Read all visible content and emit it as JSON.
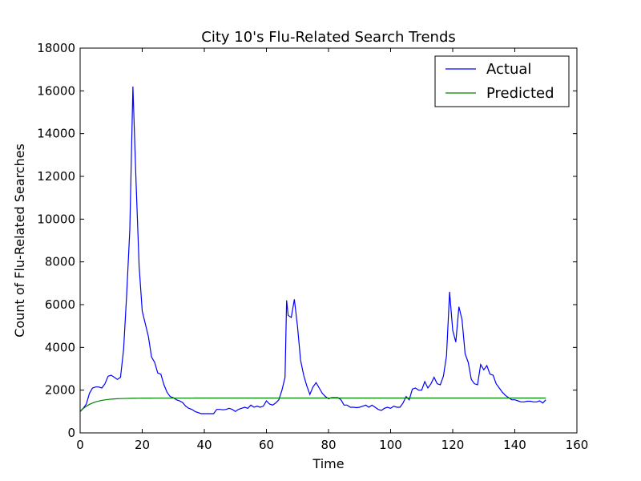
{
  "chart_data": {
    "type": "line",
    "title": "City 10's Flu-Related Search Trends",
    "xlabel": "Time",
    "ylabel": "Count of Flu-Related Searches",
    "xlim": [
      0,
      160
    ],
    "ylim": [
      0,
      18000
    ],
    "xticks": [
      0,
      20,
      40,
      60,
      80,
      100,
      120,
      140,
      160
    ],
    "yticks": [
      0,
      2000,
      4000,
      6000,
      8000,
      10000,
      12000,
      14000,
      16000,
      18000
    ],
    "grid": false,
    "legend_position": "top-right",
    "series": [
      {
        "name": "Actual",
        "color": "#0000ff",
        "points": [
          [
            0,
            1000
          ],
          [
            1,
            1150
          ],
          [
            2,
            1350
          ],
          [
            3,
            1850
          ],
          [
            4,
            2100
          ],
          [
            5,
            2150
          ],
          [
            6,
            2150
          ],
          [
            7,
            2100
          ],
          [
            8,
            2300
          ],
          [
            9,
            2650
          ],
          [
            10,
            2700
          ],
          [
            11,
            2600
          ],
          [
            12,
            2500
          ],
          [
            13,
            2600
          ],
          [
            14,
            3900
          ],
          [
            15,
            6500
          ],
          [
            16,
            9500
          ],
          [
            17,
            16200
          ],
          [
            18,
            11800
          ],
          [
            19,
            7800
          ],
          [
            20,
            5700
          ],
          [
            21,
            5100
          ],
          [
            22,
            4500
          ],
          [
            23,
            3550
          ],
          [
            24,
            3300
          ],
          [
            25,
            2800
          ],
          [
            26,
            2750
          ],
          [
            27,
            2250
          ],
          [
            28,
            1900
          ],
          [
            29,
            1700
          ],
          [
            30,
            1650
          ],
          [
            31,
            1550
          ],
          [
            32,
            1500
          ],
          [
            33,
            1420
          ],
          [
            34,
            1250
          ],
          [
            35,
            1150
          ],
          [
            36,
            1100
          ],
          [
            37,
            1000
          ],
          [
            38,
            950
          ],
          [
            39,
            900
          ],
          [
            40,
            900
          ],
          [
            41,
            900
          ],
          [
            42,
            900
          ],
          [
            43,
            900
          ],
          [
            44,
            1100
          ],
          [
            45,
            1100
          ],
          [
            46,
            1080
          ],
          [
            47,
            1100
          ],
          [
            48,
            1150
          ],
          [
            49,
            1100
          ],
          [
            50,
            1000
          ],
          [
            51,
            1100
          ],
          [
            52,
            1150
          ],
          [
            53,
            1200
          ],
          [
            54,
            1150
          ],
          [
            55,
            1300
          ],
          [
            56,
            1200
          ],
          [
            57,
            1250
          ],
          [
            58,
            1200
          ],
          [
            59,
            1250
          ],
          [
            60,
            1500
          ],
          [
            61,
            1350
          ],
          [
            62,
            1300
          ],
          [
            63,
            1400
          ],
          [
            64,
            1550
          ],
          [
            65,
            2000
          ],
          [
            66,
            2600
          ],
          [
            66.5,
            6200
          ],
          [
            67,
            5500
          ],
          [
            68,
            5400
          ],
          [
            69,
            6250
          ],
          [
            70,
            5000
          ],
          [
            71,
            3400
          ],
          [
            72,
            2700
          ],
          [
            73,
            2200
          ],
          [
            74,
            1800
          ],
          [
            75,
            2150
          ],
          [
            76,
            2350
          ],
          [
            77,
            2100
          ],
          [
            78,
            1850
          ],
          [
            79,
            1700
          ],
          [
            80,
            1600
          ],
          [
            81,
            1650
          ],
          [
            82,
            1650
          ],
          [
            83,
            1650
          ],
          [
            84,
            1550
          ],
          [
            85,
            1300
          ],
          [
            86,
            1300
          ],
          [
            87,
            1200
          ],
          [
            88,
            1200
          ],
          [
            89,
            1180
          ],
          [
            90,
            1200
          ],
          [
            91,
            1250
          ],
          [
            92,
            1300
          ],
          [
            93,
            1200
          ],
          [
            94,
            1300
          ],
          [
            95,
            1200
          ],
          [
            96,
            1100
          ],
          [
            97,
            1050
          ],
          [
            98,
            1150
          ],
          [
            99,
            1200
          ],
          [
            100,
            1150
          ],
          [
            101,
            1250
          ],
          [
            102,
            1200
          ],
          [
            103,
            1200
          ],
          [
            104,
            1400
          ],
          [
            105,
            1700
          ],
          [
            106,
            1550
          ],
          [
            107,
            2050
          ],
          [
            108,
            2100
          ],
          [
            109,
            2000
          ],
          [
            110,
            2000
          ],
          [
            111,
            2400
          ],
          [
            112,
            2100
          ],
          [
            113,
            2300
          ],
          [
            114,
            2600
          ],
          [
            115,
            2300
          ],
          [
            116,
            2250
          ],
          [
            117,
            2650
          ],
          [
            118,
            3600
          ],
          [
            119,
            6600
          ],
          [
            120,
            4800
          ],
          [
            121,
            4250
          ],
          [
            122,
            5900
          ],
          [
            123,
            5300
          ],
          [
            124,
            3700
          ],
          [
            125,
            3300
          ],
          [
            126,
            2500
          ],
          [
            127,
            2300
          ],
          [
            128,
            2250
          ],
          [
            129,
            3200
          ],
          [
            130,
            2950
          ],
          [
            131,
            3150
          ],
          [
            132,
            2750
          ],
          [
            133,
            2700
          ],
          [
            134,
            2300
          ],
          [
            135,
            2100
          ],
          [
            136,
            1900
          ],
          [
            137,
            1750
          ],
          [
            138,
            1650
          ],
          [
            139,
            1550
          ],
          [
            140,
            1550
          ],
          [
            141,
            1500
          ],
          [
            142,
            1450
          ],
          [
            143,
            1450
          ],
          [
            144,
            1480
          ],
          [
            145,
            1480
          ],
          [
            146,
            1450
          ],
          [
            147,
            1450
          ],
          [
            148,
            1500
          ],
          [
            149,
            1400
          ],
          [
            150,
            1550
          ]
        ]
      },
      {
        "name": "Predicted",
        "color": "#008000",
        "model": "exponential-saturation",
        "start": 1000,
        "plateau": 1630,
        "x_end": 150
      }
    ]
  }
}
